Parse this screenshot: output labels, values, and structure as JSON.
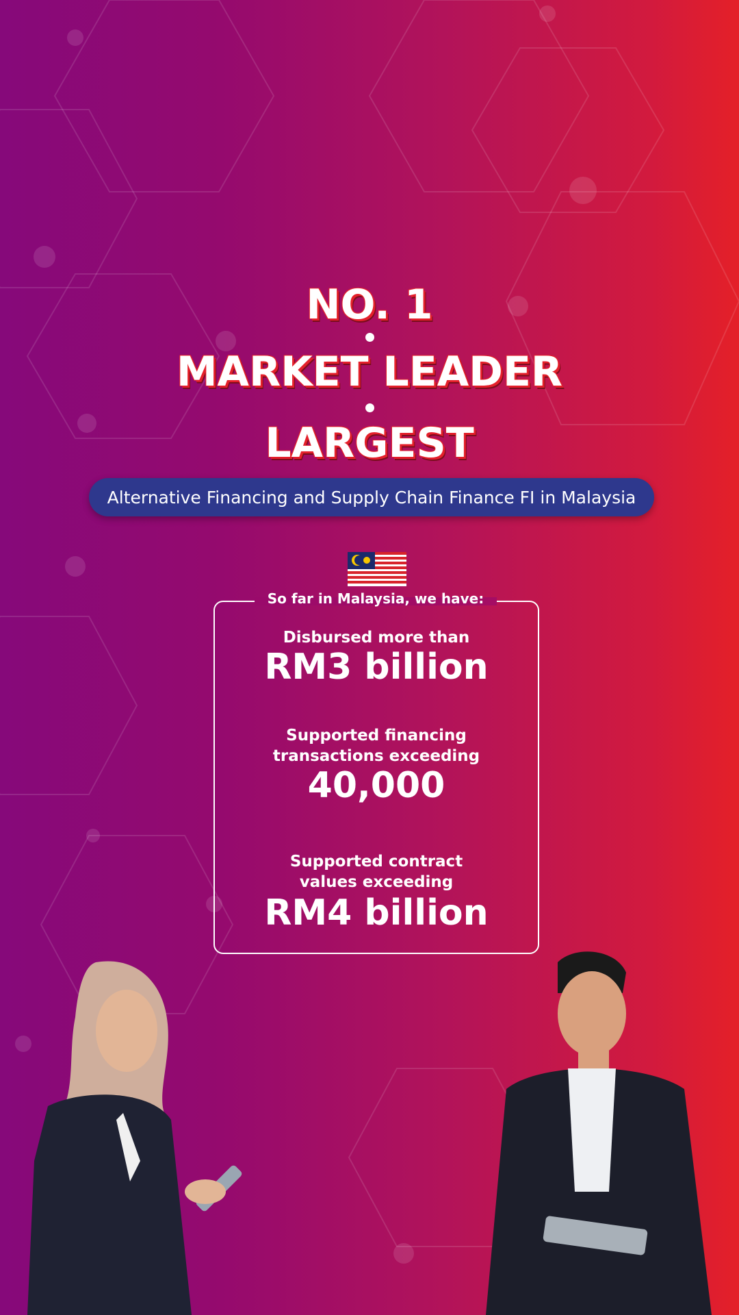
{
  "headline": {
    "line1": "NO. 1",
    "line2": "MARKET LEADER",
    "line3": "LARGEST"
  },
  "tagline": "Alternative Financing and Supply Chain Finance FI in Malaysia",
  "flag_icon": "malaysia-flag-icon",
  "stats": {
    "intro": "So far in Malaysia, we have:",
    "items": [
      {
        "label_lines": [
          "Disbursed more than"
        ],
        "value": "RM3 billion"
      },
      {
        "label_lines": [
          "Supported financing",
          "transactions exceeding"
        ],
        "value": "40,000"
      },
      {
        "label_lines": [
          "Supported contract",
          "values exceeding"
        ],
        "value": "RM4 billion"
      }
    ]
  },
  "colors": {
    "gradient_left": "#86097a",
    "gradient_right": "#e42028",
    "pill": "#2e388d",
    "headline_outline": "#e4202b"
  }
}
